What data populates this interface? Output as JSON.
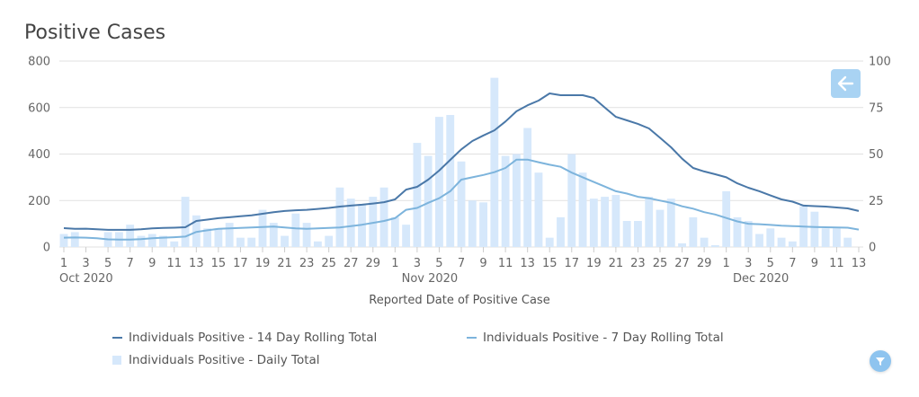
{
  "title": "Positive Cases",
  "controls": {
    "back_button": "arrow-left-icon",
    "filter_button": "filter-icon"
  },
  "colors": {
    "rolling14": "#4a78a8",
    "rolling7": "#7db4dc",
    "daily": "#d6e8fb",
    "grid": "#e1e1e1",
    "axis_text": "#666666"
  },
  "chart_data": {
    "type": "bar+line",
    "title": "Positive Cases",
    "xlabel": "Reported Date of Positive Case",
    "ylabel_left": "",
    "ylabel_right": "",
    "ylim_left": [
      0,
      800
    ],
    "ylim_right": [
      0,
      100
    ],
    "left_ticks": [
      "0",
      "200",
      "400",
      "600",
      "800"
    ],
    "right_ticks": [
      "0",
      "25",
      "50",
      "75",
      "100"
    ],
    "grid": true,
    "legend_position": "bottom",
    "x_tick_labels": [
      "1",
      "3",
      "5",
      "7",
      "9",
      "11",
      "13",
      "15",
      "17",
      "19",
      "21",
      "23",
      "25",
      "27",
      "29",
      "1",
      "3",
      "5",
      "7",
      "9",
      "11",
      "13",
      "15",
      "17",
      "19",
      "21",
      "23",
      "25",
      "27",
      "29",
      "1",
      "3",
      "5",
      "7",
      "9",
      "11",
      "13"
    ],
    "month_labels": [
      {
        "label": "Oct 2020",
        "day_index": 0
      },
      {
        "label": "Nov 2020",
        "day_index": 31
      },
      {
        "label": "Dec 2020",
        "day_index": 61
      }
    ],
    "start_date": "2020-10-01",
    "end_date": "2020-12-13",
    "series": [
      {
        "name": "Individuals Positive - 14 Day Rolling Total",
        "type": "line",
        "axis": "left",
        "values": [
          81,
          78,
          79,
          76,
          74,
          74,
          74,
          76,
          80,
          82,
          83,
          85,
          112,
          118,
          124,
          128,
          132,
          136,
          143,
          150,
          155,
          158,
          160,
          164,
          168,
          174,
          178,
          182,
          187,
          193,
          205,
          247,
          259,
          290,
          329,
          375,
          420,
          456,
          480,
          502,
          540,
          584,
          610,
          630,
          661,
          653,
          653,
          653,
          641,
          600,
          560,
          545,
          530,
          510,
          470,
          429,
          380,
          340,
          325,
          313,
          300,
          274,
          255,
          240,
          222,
          205,
          195,
          178,
          176,
          174,
          170,
          166,
          155
        ]
      },
      {
        "name": "Individuals Positive - 7 Day Rolling Total",
        "type": "line",
        "axis": "left",
        "values": [
          40,
          41,
          40,
          38,
          33,
          32,
          32,
          34,
          38,
          40,
          42,
          45,
          65,
          72,
          78,
          80,
          82,
          84,
          86,
          88,
          84,
          80,
          78,
          80,
          82,
          84,
          90,
          96,
          104,
          112,
          124,
          160,
          168,
          190,
          210,
          240,
          290,
          300,
          310,
          322,
          340,
          376,
          376,
          365,
          354,
          345,
          320,
          300,
          280,
          260,
          240,
          230,
          216,
          210,
          200,
          190,
          175,
          165,
          150,
          140,
          125,
          110,
          100,
          98,
          95,
          92,
          90,
          88,
          86,
          85,
          84,
          83,
          75
        ]
      },
      {
        "name": "Individuals Positive - Daily Total",
        "type": "bar",
        "axis": "right",
        "values": [
          7,
          8,
          0,
          0,
          8,
          8,
          12,
          6,
          7,
          6,
          3,
          27,
          17,
          10,
          10,
          13,
          5,
          5,
          20,
          13,
          6,
          18,
          13,
          3,
          6,
          32,
          26,
          23,
          27,
          32,
          16,
          12,
          56,
          49,
          70,
          71,
          46,
          25,
          24,
          91,
          49,
          50,
          64,
          40,
          5,
          16,
          50,
          40,
          26,
          27,
          28,
          14,
          14,
          27,
          20,
          26,
          2,
          16,
          5,
          1,
          30,
          16,
          14,
          7,
          10,
          5,
          3,
          22,
          19,
          10,
          10,
          5,
          0
        ]
      }
    ]
  }
}
